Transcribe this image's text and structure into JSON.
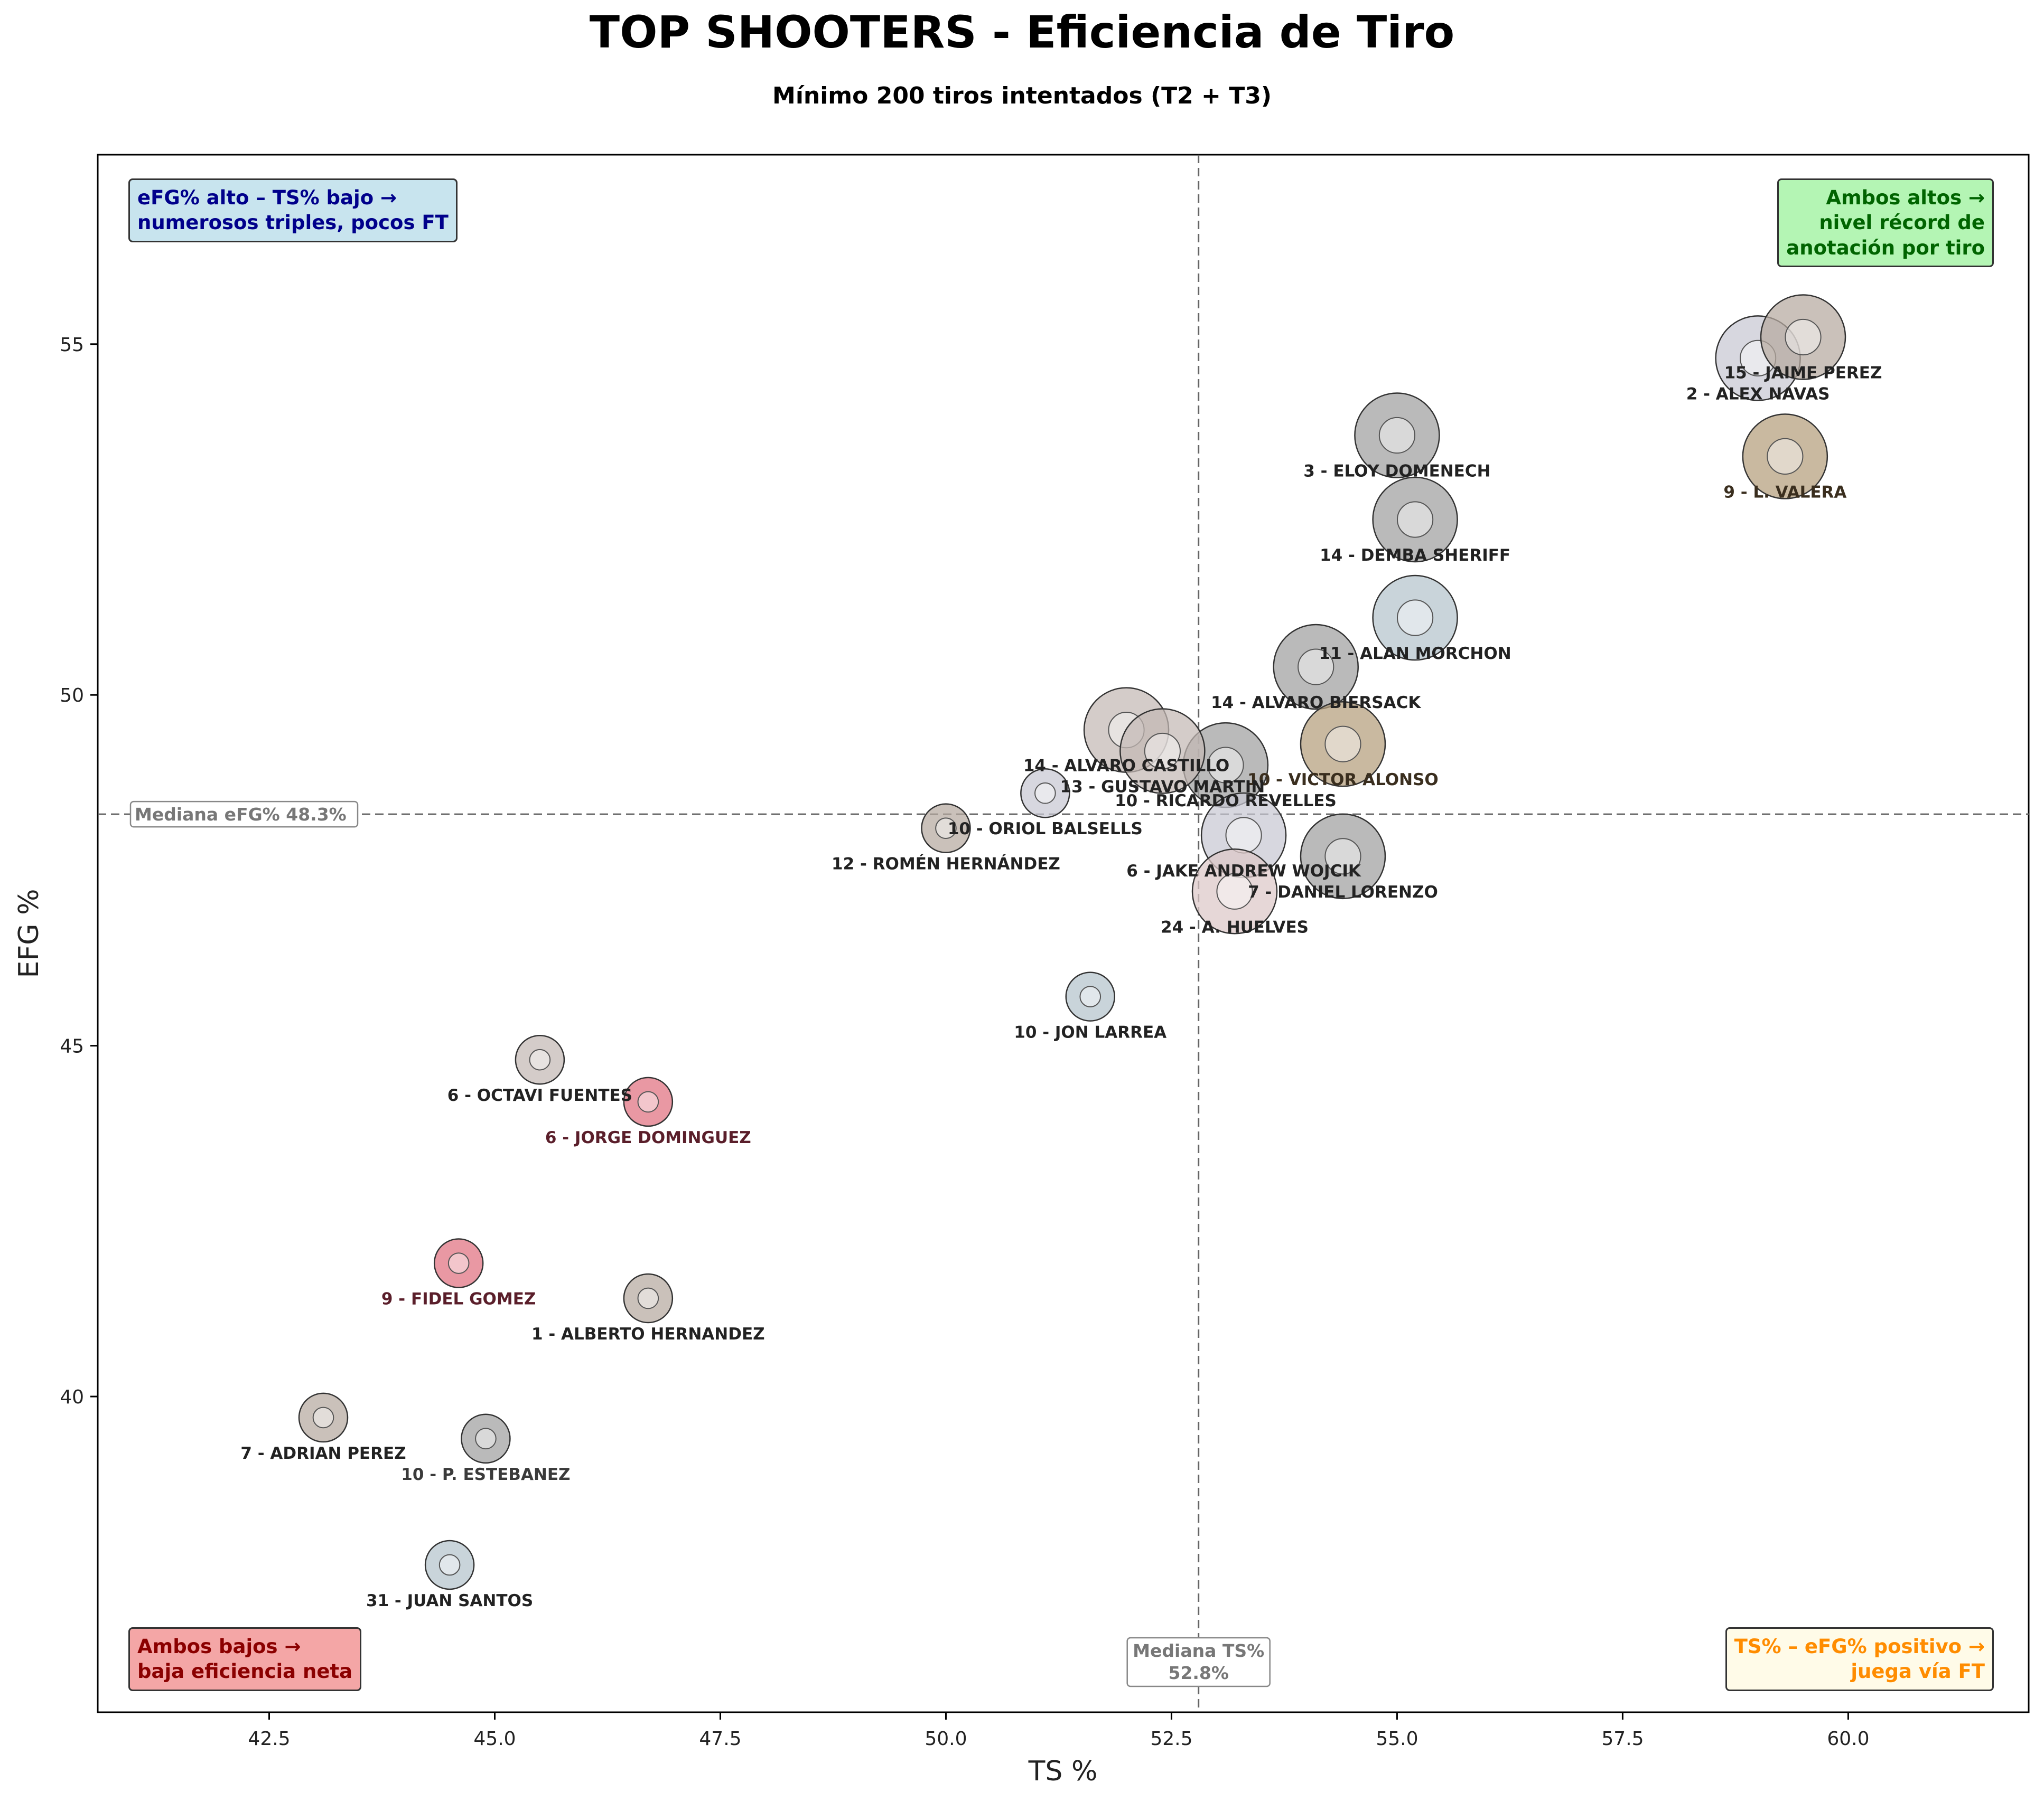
{
  "title": "TOP SHOOTERS - Eficiencia de Tiro",
  "subtitle": "Mínimo 200 tiros intentados (T2 + T3)",
  "annotations": {
    "top_left": [
      "eFG% alto – TS% bajo →",
      "numerosos triples, pocos FT"
    ],
    "top_right": [
      "Ambos altos →",
      "nivel récord de",
      "anotación por tiro"
    ],
    "bottom_left": [
      "Ambos bajos →",
      "baja eficiencia neta"
    ],
    "bottom_right": [
      "TS% – eFG% positivo →",
      "juega vía FT"
    ]
  },
  "chart_data": {
    "type": "scatter",
    "title": "TOP SHOOTERS - Eficiencia de Tiro",
    "subtitle": "Mínimo 200 tiros intentados (T2 + T3)",
    "xlabel": "TS %",
    "ylabel": "EFG %",
    "xlim": [
      40.6,
      62.0
    ],
    "ylim": [
      35.5,
      57.7
    ],
    "xticks": [
      "42.5",
      "45.0",
      "47.5",
      "50.0",
      "52.5",
      "55.0",
      "57.5",
      "60.0"
    ],
    "yticks": [
      "40",
      "45",
      "50",
      "55"
    ],
    "grid": false,
    "median_x": 52.8,
    "median_y": 48.3,
    "median_x_label": [
      "Mediana TS%",
      "52.8%"
    ],
    "median_y_label": "Mediana eFG% 48.3%",
    "points": [
      {
        "label": "2 - ALEX NAVAS",
        "x": 59.0,
        "y": 54.8,
        "color": "#c8c8d2",
        "label_color": "#222222"
      },
      {
        "label": "15 - JAIME PEREZ",
        "x": 59.5,
        "y": 55.1,
        "color": "#b5a9a0",
        "label_color": "#222222"
      },
      {
        "label": "9 - L. VALERA",
        "x": 59.3,
        "y": 53.4,
        "color": "#b49e7c",
        "label_color": "#3a2e1e"
      },
      {
        "label": "3 - ELOY DOMENECH",
        "x": 55.0,
        "y": 53.7,
        "color": "#a0a0a0",
        "label_color": "#222222"
      },
      {
        "label": "14 - DEMBA SHERIFF",
        "x": 55.2,
        "y": 52.5,
        "color": "#a0a0a0",
        "label_color": "#222222"
      },
      {
        "label": "11 - ALAN MORCHON",
        "x": 55.2,
        "y": 51.1,
        "color": "#b4c3cc",
        "label_color": "#222222"
      },
      {
        "label": "14 - ALVARO BIERSACK",
        "x": 54.1,
        "y": 50.4,
        "color": "#a0a0a0",
        "label_color": "#222222"
      },
      {
        "label": "10 - VICTOR ALONSO",
        "x": 54.4,
        "y": 49.3,
        "color": "#b49e7c",
        "label_color": "#3a2e1e"
      },
      {
        "label": "14 - ALVARO CASTILLO",
        "x": 52.0,
        "y": 49.5,
        "color": "#c4b8b4",
        "label_color": "#222222"
      },
      {
        "label": "10 - RICARDO REVELLES",
        "x": 53.1,
        "y": 49.0,
        "color": "#a0a0a0",
        "label_color": "#222222"
      },
      {
        "label": "10 - ORIOL BALSELLS",
        "x": 51.1,
        "y": 48.6,
        "color": "#c8c8d2",
        "label_color": "#222222"
      },
      {
        "label": "13 - GUSTAVO MARTIN",
        "x": 52.4,
        "y": 49.2,
        "color": "#c4b8b4",
        "label_color": "#222222"
      },
      {
        "label": "12 - ROMÉN HERNÁNDEZ",
        "x": 50.0,
        "y": 48.1,
        "color": "#b5a9a0",
        "label_color": "#222222"
      },
      {
        "label": "6 - JAKE ANDREW WOJCIK",
        "x": 53.3,
        "y": 48.0,
        "color": "#c8c8d2",
        "label_color": "#222222"
      },
      {
        "label": "7 - DANIEL LORENZO",
        "x": 54.4,
        "y": 47.7,
        "color": "#a0a0a0",
        "label_color": "#222222"
      },
      {
        "label": "24 - A. HUELVES",
        "x": 53.2,
        "y": 47.2,
        "color": "#dcc8c8",
        "label_color": "#222222"
      },
      {
        "label": "10 - JON LARREA",
        "x": 51.6,
        "y": 45.7,
        "color": "#b4c3cc",
        "label_color": "#222222"
      },
      {
        "label": "6 - OCTAVI FUENTES",
        "x": 45.5,
        "y": 44.8,
        "color": "#c4b8b4",
        "label_color": "#222222"
      },
      {
        "label": "6 - JORGE DOMINGUEZ",
        "x": 46.7,
        "y": 44.2,
        "color": "#e0707f",
        "label_color": "#5a1e2a"
      },
      {
        "label": "9 - FIDEL GOMEZ",
        "x": 44.6,
        "y": 41.9,
        "color": "#e0707f",
        "label_color": "#5a1e2a"
      },
      {
        "label": "1 - ALBERTO HERNANDEZ",
        "x": 46.7,
        "y": 41.4,
        "color": "#b5a9a0",
        "label_color": "#222222"
      },
      {
        "label": "7 - ADRIAN PEREZ",
        "x": 43.1,
        "y": 39.7,
        "color": "#b5a9a0",
        "label_color": "#222222"
      },
      {
        "label": "10 - P. ESTEBANEZ",
        "x": 44.9,
        "y": 39.4,
        "color": "#a0a0a0",
        "label_color": "#3a3a3a"
      },
      {
        "label": "31 - JUAN SANTOS",
        "x": 44.5,
        "y": 37.6,
        "color": "#b4c3cc",
        "label_color": "#222222"
      }
    ]
  }
}
